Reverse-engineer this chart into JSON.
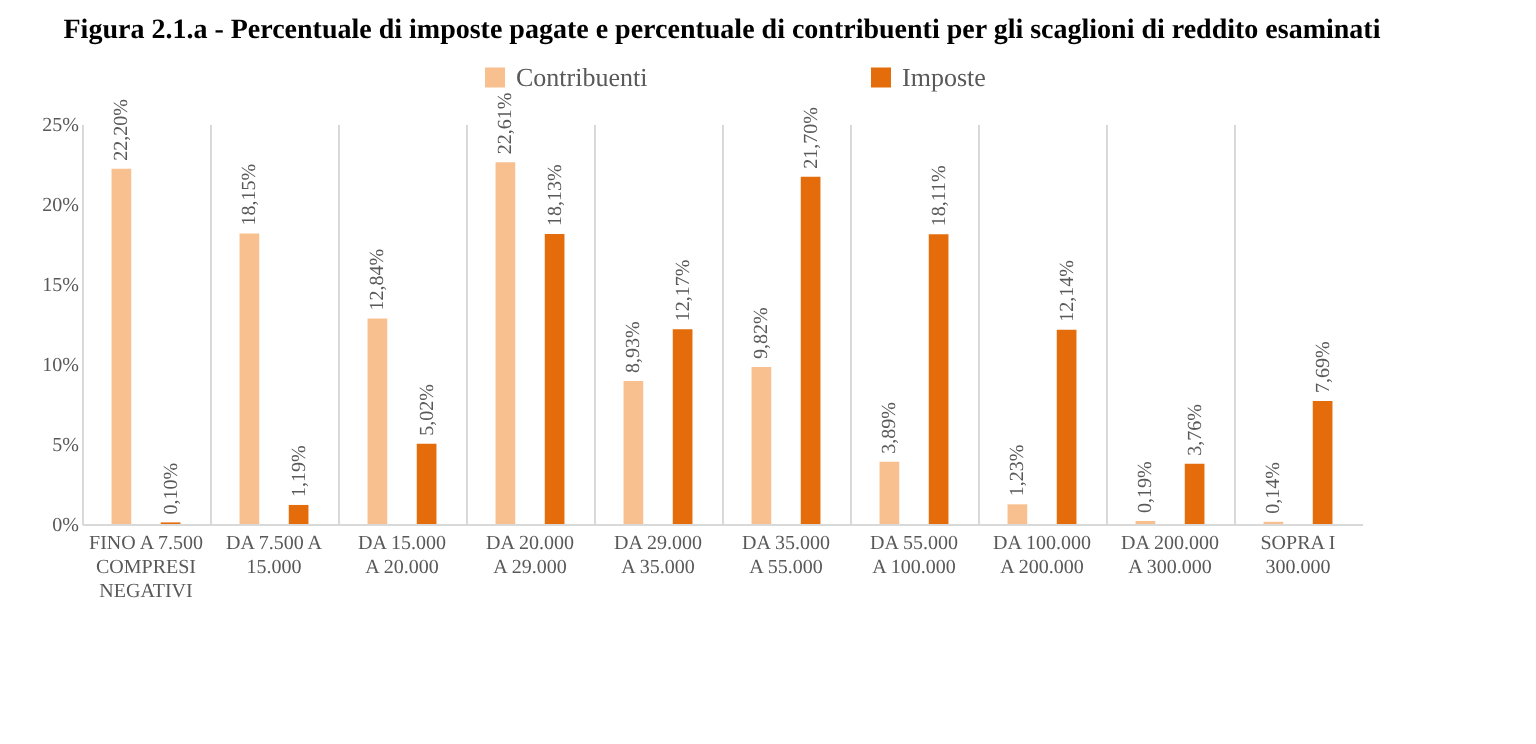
{
  "chart_data": {
    "type": "bar",
    "title": "Figura 2.1.a - Percentuale di imposte pagate e percentuale di contribuenti per gli scaglioni di reddito esaminati",
    "categories": [
      "FINO A 7.500\nCOMPRESI\nNEGATIVI",
      "DA 7.500   A\n15.000",
      "DA 15.000\nA 20.000",
      "DA 20.000\nA 29.000",
      "DA 29.000\nA 35.000",
      "DA 35.000\nA 55.000",
      "DA 55.000\nA 100.000",
      "DA 100.000\nA 200.000",
      "DA 200.000\nA 300.000",
      "SOPRA I\n300.000"
    ],
    "series": [
      {
        "name": "Contribuenti",
        "color": "#f8bf8f",
        "values": [
          22.2,
          18.15,
          12.84,
          22.61,
          8.93,
          9.82,
          3.89,
          1.23,
          0.19,
          0.14
        ],
        "value_labels": [
          "22,20%",
          "18,15%",
          "12,84%",
          "22,61%",
          "8,93%",
          "9,82%",
          "3,89%",
          "1,23%",
          "0,19%",
          "0,14%"
        ]
      },
      {
        "name": "Imposte",
        "color": "#e46c0a",
        "values": [
          0.1,
          1.19,
          5.02,
          18.13,
          12.17,
          21.7,
          18.11,
          12.14,
          3.76,
          7.69
        ],
        "value_labels": [
          "0,10%",
          "1,19%",
          "5,02%",
          "18,13%",
          "12,17%",
          "21,70%",
          "18,11%",
          "12,14%",
          "3,76%",
          "7,69%"
        ]
      }
    ],
    "ylim": [
      0,
      25
    ],
    "yticks": [
      {
        "value": 0,
        "label": "0%"
      },
      {
        "value": 5,
        "label": "5%"
      },
      {
        "value": 10,
        "label": "10%"
      },
      {
        "value": 15,
        "label": "15%"
      },
      {
        "value": 20,
        "label": "20%"
      },
      {
        "value": 25,
        "label": "25%"
      }
    ],
    "grid": "x",
    "legend": "top"
  }
}
